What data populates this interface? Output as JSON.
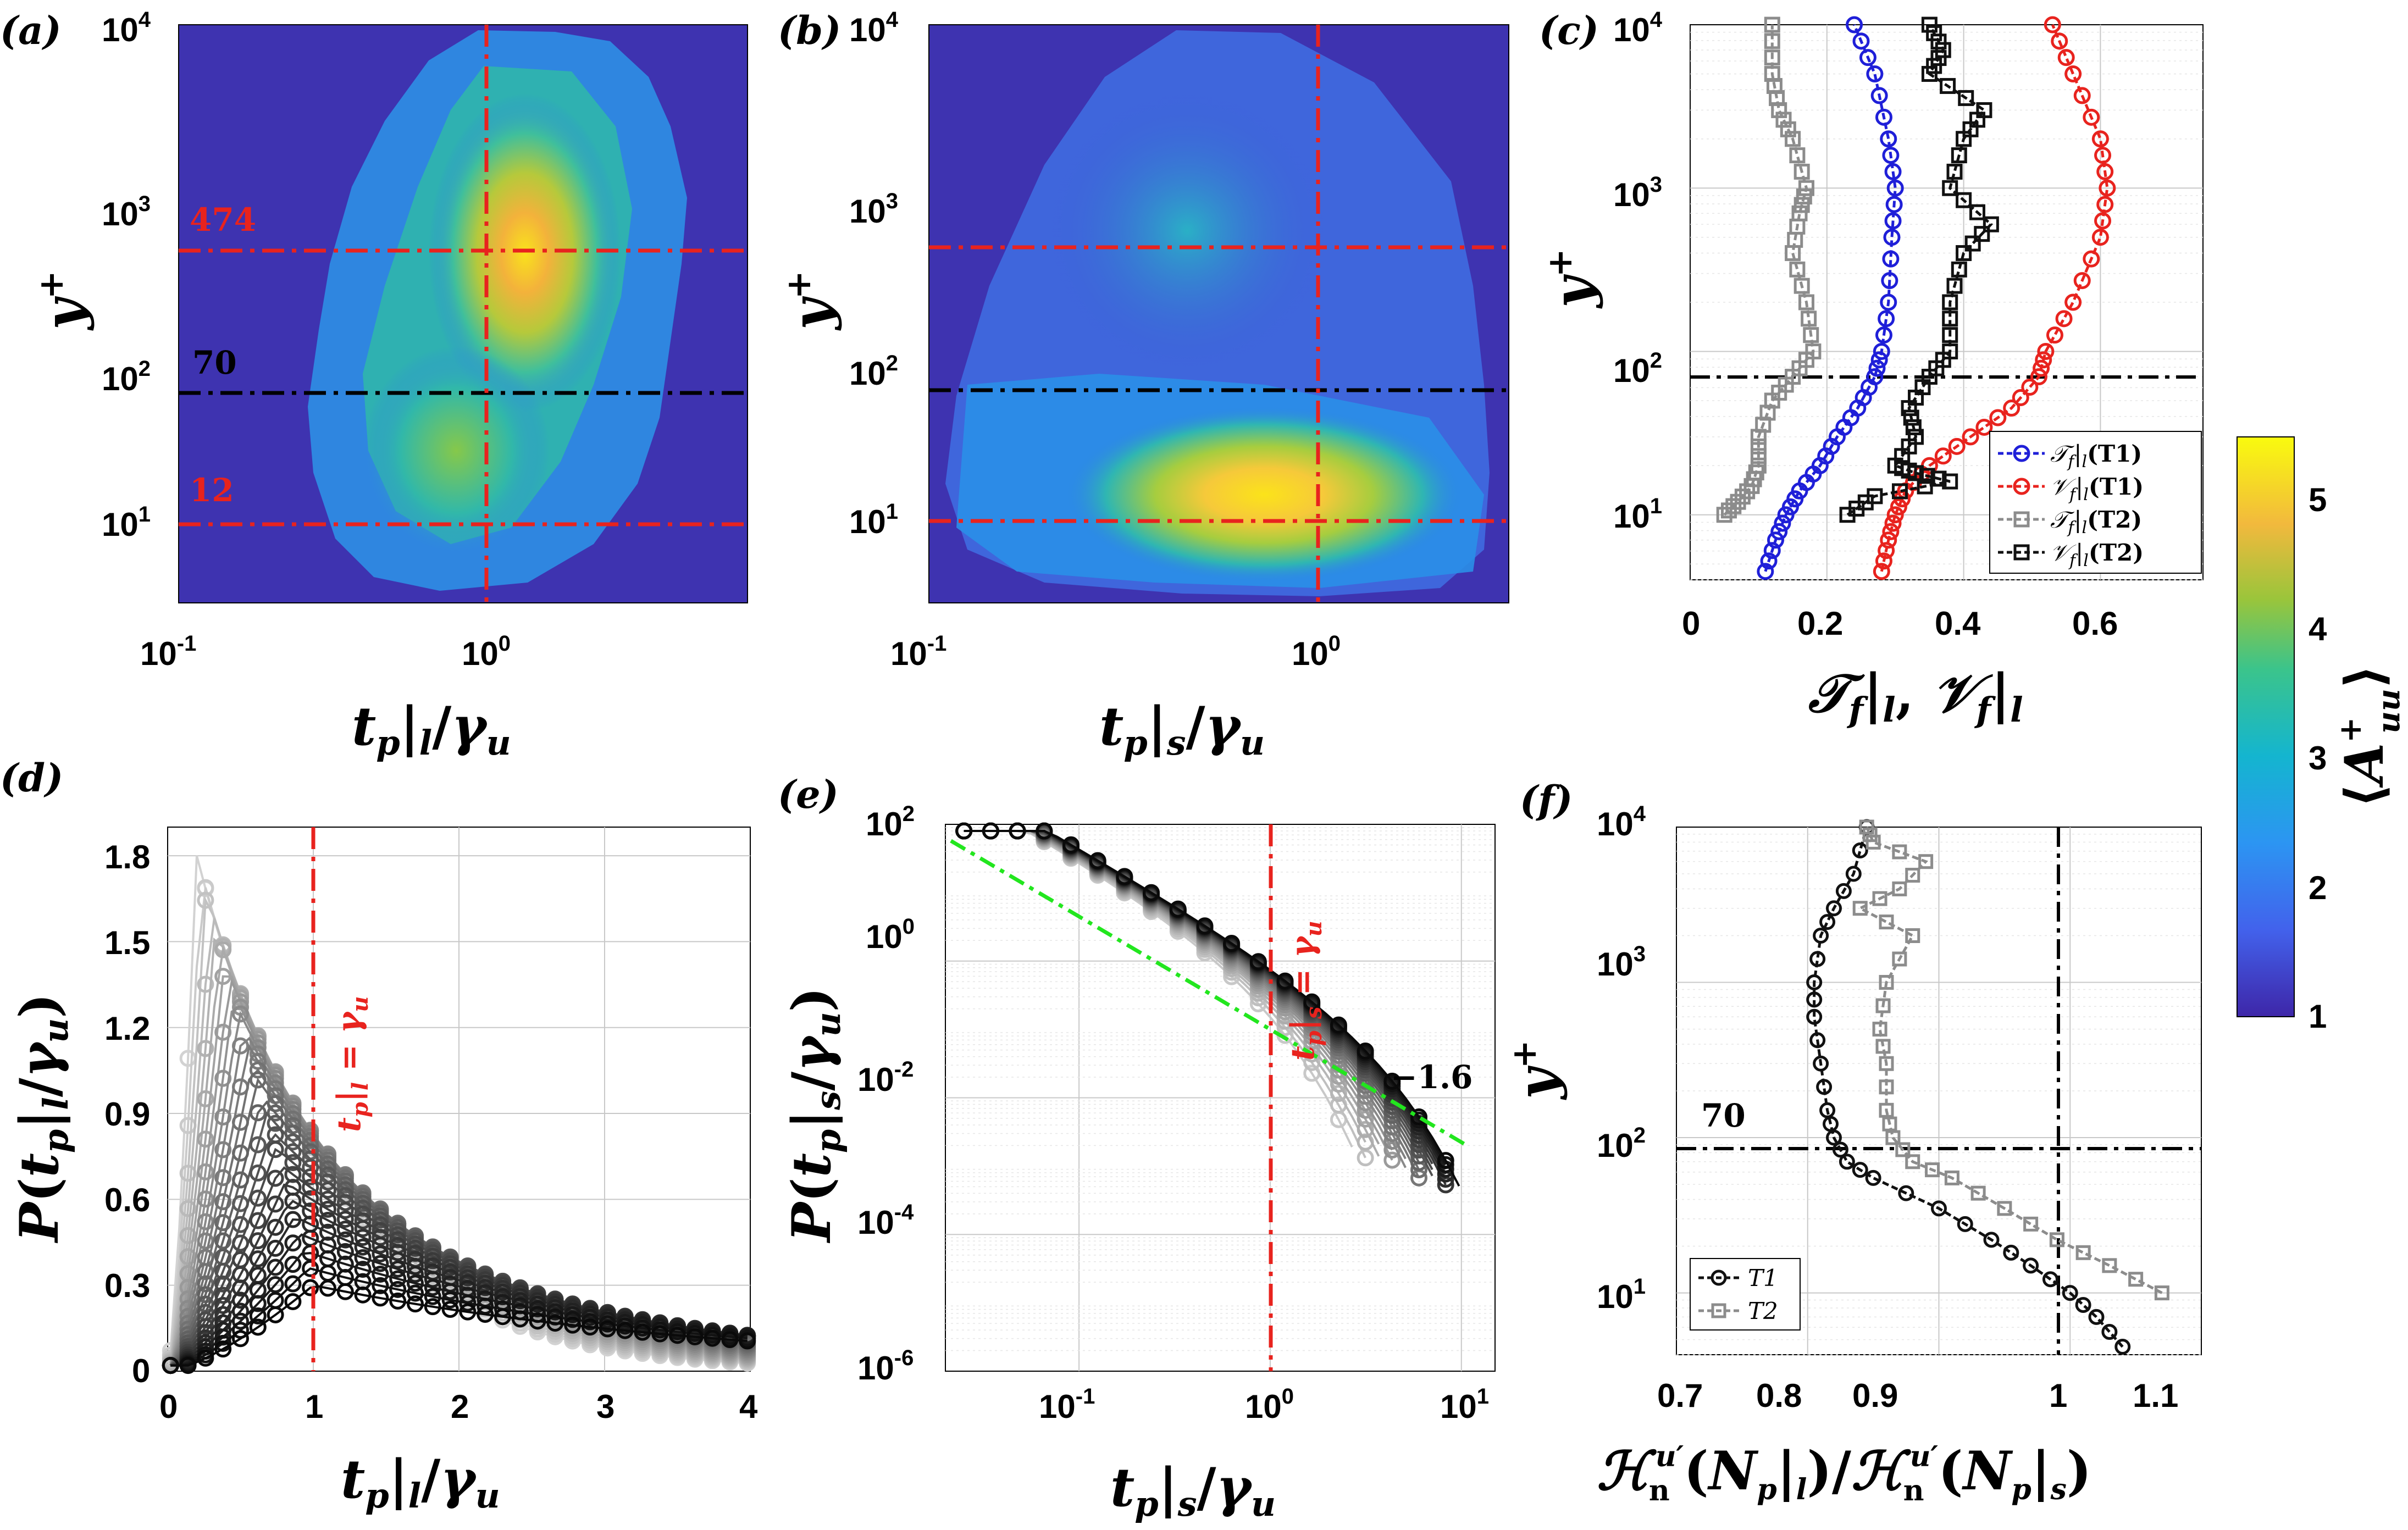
{
  "chart_data": [
    {
      "panel": "(a)",
      "type": "heatmap",
      "xlabel": "t_p|_l / γ_u",
      "ylabel": "y+",
      "xscale": "log",
      "yscale": "log",
      "xlim": [
        0.1,
        6
      ],
      "ylim": [
        4,
        10000
      ],
      "x_ticks": [
        "10-1",
        "100"
      ],
      "y_ticks": [
        "101",
        "102",
        "103",
        "104"
      ],
      "annotations": [
        "474",
        "70",
        "12"
      ],
      "hlines": [
        474,
        70,
        12
      ],
      "vline": 1
    },
    {
      "panel": "(b)",
      "type": "heatmap",
      "xlabel": "t_p|_s / γ_u",
      "ylabel": "y+",
      "xscale": "log",
      "yscale": "log",
      "xlim": [
        0.1,
        3
      ],
      "ylim": [
        4,
        10000
      ],
      "x_ticks": [
        "10-1",
        "100"
      ],
      "y_ticks": [
        "101",
        "102",
        "103",
        "104"
      ],
      "hlines": [
        474,
        70,
        12
      ],
      "vline": 1
    },
    {
      "panel": "(c)",
      "type": "line",
      "xlabel": "T_f|_l , V_f|_l",
      "ylabel": "y+",
      "yscale": "log",
      "xlim": [
        0,
        0.75
      ],
      "ylim": [
        4,
        10000
      ],
      "x_ticks": [
        "0",
        "0.2",
        "0.4",
        "0.6"
      ],
      "y_ticks": [
        "101",
        "102",
        "103",
        "104"
      ],
      "hline": 70,
      "series": [
        {
          "name": "T_f|_l(T1)",
          "color": "#1f1fd8",
          "marker": "circle",
          "y": [
            4.5,
            7,
            10,
            14,
            20,
            30,
            45,
            70,
            100,
            200,
            500,
            1000,
            2000,
            5000,
            10000
          ],
          "x": [
            0.11,
            0.125,
            0.14,
            0.16,
            0.19,
            0.215,
            0.245,
            0.27,
            0.28,
            0.29,
            0.295,
            0.3,
            0.29,
            0.27,
            0.24
          ]
        },
        {
          "name": "V_f|_l(T1)",
          "color": "#e8231e",
          "marker": "circle",
          "y": [
            4.5,
            7,
            10,
            14,
            20,
            30,
            45,
            70,
            100,
            200,
            500,
            1000,
            2000,
            5000,
            10000
          ],
          "x": [
            0.28,
            0.29,
            0.3,
            0.315,
            0.35,
            0.41,
            0.47,
            0.51,
            0.52,
            0.56,
            0.6,
            0.61,
            0.6,
            0.56,
            0.53
          ]
        },
        {
          "name": "T_f|_l(T2)",
          "color": "#8c8c8c",
          "marker": "square",
          "y": [
            10,
            12,
            15,
            20,
            30,
            50,
            70,
            100,
            200,
            400,
            700,
            1000,
            2000,
            3000,
            5000,
            10000
          ],
          "x": [
            0.05,
            0.07,
            0.09,
            0.1,
            0.1,
            0.12,
            0.15,
            0.18,
            0.17,
            0.15,
            0.16,
            0.17,
            0.15,
            0.13,
            0.12,
            0.12
          ]
        },
        {
          "name": "V_f|_l(T2)",
          "color": "#111111",
          "marker": "square",
          "y": [
            10,
            13,
            16,
            18,
            20,
            30,
            45,
            70,
            100,
            200,
            400,
            600,
            1000,
            2000,
            3000,
            5000,
            7000,
            10000
          ],
          "x": [
            0.23,
            0.27,
            0.38,
            0.33,
            0.3,
            0.33,
            0.32,
            0.35,
            0.38,
            0.38,
            0.4,
            0.44,
            0.38,
            0.4,
            0.43,
            0.35,
            0.37,
            0.35
          ]
        }
      ]
    },
    {
      "panel": "(d)",
      "type": "scatter",
      "xlabel": "t_p|_l / γ_u",
      "ylabel": "P(t_p|_l / γ_u)",
      "xlim": [
        0,
        4
      ],
      "ylim": [
        0,
        1.9
      ],
      "x_ticks": [
        "0",
        "1",
        "2",
        "3",
        "4"
      ],
      "y_ticks": [
        "0",
        "0.3",
        "0.6",
        "0.9",
        "1.2",
        "1.5",
        "1.8"
      ],
      "annotation": "t_p|_l = γ_u",
      "vline": 1
    },
    {
      "panel": "(e)",
      "type": "scatter",
      "xlabel": "t_p|_s / γ_u",
      "ylabel": "P(t_p|_s / γ_u)",
      "xscale": "log",
      "yscale": "log",
      "xlim": [
        0.02,
        15
      ],
      "ylim": [
        1e-06,
        100
      ],
      "x_ticks": [
        "10-1",
        "100",
        "101"
      ],
      "y_ticks": [
        "10-6",
        "10-4",
        "10-2",
        "100",
        "102"
      ],
      "annotation": "t_p|_s = γ_u",
      "slope_label": "−1.6",
      "slope": -1.6,
      "vline": 1
    },
    {
      "panel": "(f)",
      "type": "line",
      "xlabel": "H_n^{u'}(N_p|_l) / H_n^{u'}(N_p|_s)",
      "ylabel": "y+",
      "yscale": "log",
      "xlim": [
        0.7,
        1.1
      ],
      "ylim": [
        4,
        10000
      ],
      "x_ticks": [
        "0.7",
        "0.8",
        "0.9",
        "1",
        "1.1"
      ],
      "y_ticks": [
        "101",
        "102",
        "103",
        "104"
      ],
      "hline_label": "70",
      "hline": 70,
      "vline": 1,
      "series": [
        {
          "name": "T1",
          "color": "#111111",
          "marker": "circle",
          "y": [
            4.5,
            7,
            10,
            15,
            22,
            35,
            55,
            70,
            100,
            150,
            300,
            600,
            1000,
            2000,
            3000,
            5000,
            10000
          ],
          "x": [
            1.04,
            1.02,
            1.0,
            0.97,
            0.94,
            0.9,
            0.85,
            0.83,
            0.82,
            0.815,
            0.81,
            0.805,
            0.805,
            0.81,
            0.82,
            0.835,
            0.845
          ]
        },
        {
          "name": "T2",
          "color": "#8c8c8c",
          "marker": "square",
          "y": [
            10,
            15,
            22,
            35,
            55,
            70,
            100,
            150,
            300,
            500,
            1000,
            2000,
            3000,
            4000,
            6000,
            8000,
            10000
          ],
          "x": [
            1.07,
            1.03,
            0.99,
            0.95,
            0.91,
            0.88,
            0.865,
            0.86,
            0.86,
            0.855,
            0.86,
            0.88,
            0.84,
            0.87,
            0.89,
            0.85,
            0.845
          ]
        }
      ]
    },
    {
      "panel": "colorbar",
      "type": "colorbar",
      "label": "⟨A+uu⟩",
      "ticks": [
        "1",
        "2",
        "3",
        "4",
        "5"
      ],
      "range": [
        1,
        5.5
      ]
    }
  ],
  "labels": {
    "panel_a": "(a)",
    "panel_b": "(b)",
    "panel_c": "(c)",
    "panel_d": "(d)",
    "panel_e": "(e)",
    "panel_f": "(f)"
  },
  "colors": {
    "red_dash": "#e8231e",
    "black_dash": "#000000",
    "green_fit": "#22e61e"
  }
}
